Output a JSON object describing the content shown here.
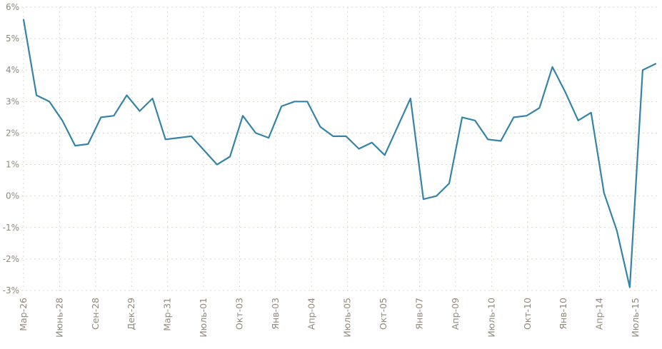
{
  "chart_data": {
    "type": "line",
    "title": "",
    "xlabel": "",
    "ylabel": "",
    "ylim": [
      -3,
      6
    ],
    "grid": true,
    "legend": "none",
    "line_color": "#3584a7",
    "grid_color": "#ddd8cb",
    "tick_color": "#8f8a7d",
    "y_ticks": [
      "6%",
      "5%",
      "4%",
      "3%",
      "2%",
      "1%",
      "0%",
      "-1%",
      "-2%",
      "-3%"
    ],
    "categories": [
      "Мар-26",
      "Июнь-28",
      "Сен-28",
      "Дек-29",
      "Мар-31",
      "Июль-01",
      "Окт-03",
      "Янв-03",
      "Апр-04",
      "Июль-05",
      "Окт-05",
      "Янв-07",
      "Апр-09",
      "Июль-10",
      "Окт-10",
      "Янв-10",
      "Апр-14",
      "Июль-15"
    ],
    "values": [
      5.6,
      3.2,
      3.0,
      2.4,
      1.6,
      1.65,
      2.5,
      2.55,
      3.2,
      2.7,
      3.1,
      1.8,
      1.85,
      1.9,
      1.45,
      1.0,
      1.25,
      2.55,
      2.0,
      1.85,
      2.85,
      3.0,
      3.0,
      2.2,
      1.9,
      1.9,
      1.5,
      1.7,
      1.3,
      2.2,
      3.1,
      -0.1,
      0.0,
      0.4,
      2.5,
      2.4,
      1.8,
      1.75,
      2.5,
      2.55,
      2.8,
      4.1,
      3.3,
      2.4,
      2.65,
      0.1,
      -1.1,
      -2.9,
      4.0,
      4.2
    ]
  }
}
